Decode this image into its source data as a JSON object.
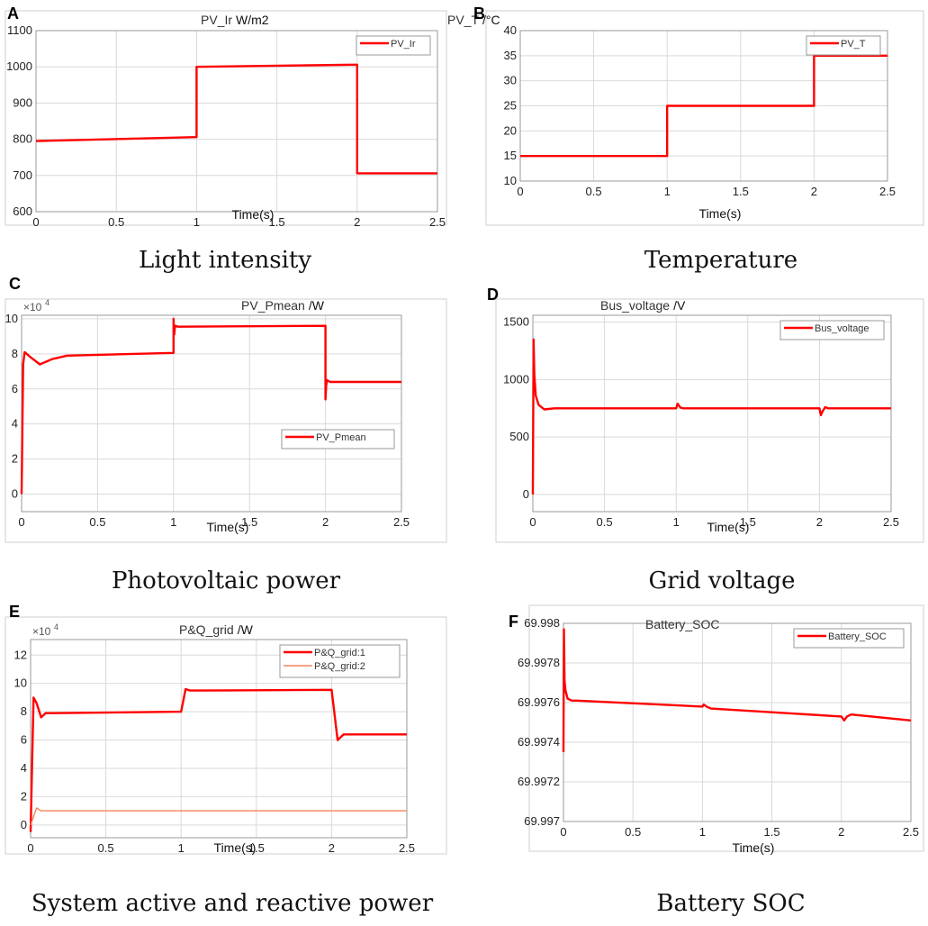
{
  "colors": {
    "primary_series": "#ff0000",
    "secondary_series": "#f4845f",
    "grid": "#d9d9d9",
    "axes_box": "#9a9a9a",
    "panel_border": "#cfcfcf"
  },
  "chart_data": [
    {
      "id": "A",
      "type": "line",
      "panel_letter": "A",
      "title": "PV_Ir",
      "title_unit": "W/m2",
      "caption": "Light intensity",
      "xlabel": "Time(s)",
      "ylabel": "",
      "xlim": [
        0,
        2.5
      ],
      "ylim": [
        600,
        1100
      ],
      "xticks": [
        0,
        0.5,
        1,
        1.5,
        2,
        2.5
      ],
      "xtick_labels": [
        "0",
        "0.5",
        "1",
        "1.5",
        "2",
        "2.5"
      ],
      "yticks": [
        600,
        700,
        800,
        900,
        1000,
        1100
      ],
      "ytick_labels": [
        "600",
        "700",
        "800",
        "900",
        "1000",
        "1100"
      ],
      "exponent": "",
      "grid": true,
      "legend_position": "top-right",
      "series": [
        {
          "name": "PV_Ir",
          "color": "#ff0000",
          "x": [
            0,
            1,
            1,
            2,
            2,
            2.5
          ],
          "y": [
            795,
            806,
            1000,
            1006,
            706,
            706
          ]
        }
      ]
    },
    {
      "id": "B",
      "type": "line",
      "panel_letter": "B",
      "title": "PV_T",
      "title_unit": "/°C",
      "caption": "Temperature",
      "xlabel": "Time(s)",
      "ylabel": "",
      "xlim": [
        0,
        2.5
      ],
      "ylim": [
        10,
        40
      ],
      "xticks": [
        0,
        0.5,
        1,
        1.5,
        2,
        2.5
      ],
      "xtick_labels": [
        "0",
        "0.5",
        "1",
        "1.5",
        "2",
        "2.5"
      ],
      "yticks": [
        10,
        15,
        20,
        25,
        30,
        35,
        40
      ],
      "ytick_labels": [
        "10",
        "15",
        "20",
        "25",
        "30",
        "35",
        "40"
      ],
      "exponent": "",
      "grid": true,
      "legend_position": "top-right",
      "series": [
        {
          "name": "PV_T",
          "color": "#ff0000",
          "x": [
            0,
            1,
            1,
            2,
            2,
            2.5
          ],
          "y": [
            15,
            15,
            25,
            25,
            35,
            35
          ]
        }
      ]
    },
    {
      "id": "C",
      "type": "line",
      "panel_letter": "C",
      "title": "PV_Pmean",
      "title_unit": "/W",
      "caption": "Photovoltaic power",
      "xlabel": "Time(s)",
      "ylabel": "",
      "xlim": [
        0,
        2.5
      ],
      "ylim": [
        -1,
        10.2
      ],
      "xticks": [
        0,
        0.5,
        1,
        1.5,
        2,
        2.5
      ],
      "xtick_labels": [
        "0",
        "0.5",
        "1",
        "1.5",
        "2",
        "2.5"
      ],
      "yticks": [
        0,
        2,
        4,
        6,
        8,
        10
      ],
      "ytick_labels": [
        "0",
        "2",
        "4",
        "6",
        "8",
        "10"
      ],
      "exponent": "4",
      "grid": true,
      "legend_position": "bottom-right",
      "series": [
        {
          "name": "PV_Pmean",
          "color": "#ff0000",
          "x": [
            0,
            0.01,
            0.02,
            0.06,
            0.12,
            0.2,
            0.3,
            1.0,
            1.0,
            1.005,
            1.01,
            1.03,
            2.0,
            2.0,
            2.005,
            2.01,
            2.03,
            2.5
          ],
          "y": [
            0,
            7.4,
            8.1,
            7.8,
            7.4,
            7.7,
            7.9,
            8.05,
            10.0,
            9.1,
            9.6,
            9.55,
            9.6,
            5.4,
            6.2,
            6.5,
            6.4,
            6.4
          ]
        }
      ]
    },
    {
      "id": "D",
      "type": "line",
      "panel_letter": "D",
      "title": "Bus_voltage",
      "title_unit": "/V",
      "caption": "Grid voltage",
      "xlabel": "Time(s)",
      "ylabel": "",
      "xlim": [
        0,
        2.5
      ],
      "ylim": [
        -150,
        1560
      ],
      "xticks": [
        0,
        0.5,
        1,
        1.5,
        2,
        2.5
      ],
      "xtick_labels": [
        "0",
        "0.5",
        "1",
        "1.5",
        "2",
        "2.5"
      ],
      "yticks": [
        0,
        500,
        1000,
        1500
      ],
      "ytick_labels": [
        "0",
        "500",
        "1000",
        "1500"
      ],
      "exponent": "",
      "grid": true,
      "legend_position": "top-right",
      "series": [
        {
          "name": "Bus_voltage",
          "color": "#ff0000",
          "x": [
            0,
            0.005,
            0.01,
            0.02,
            0.04,
            0.08,
            0.15,
            1.0,
            1.01,
            1.03,
            1.05,
            2.0,
            2.01,
            2.02,
            2.04,
            2.06,
            2.5
          ],
          "y": [
            0,
            1350,
            1050,
            860,
            780,
            740,
            750,
            750,
            790,
            755,
            750,
            750,
            690,
            720,
            760,
            750,
            750
          ]
        }
      ]
    },
    {
      "id": "E",
      "type": "line",
      "panel_letter": "E",
      "title": "P&Q_grid",
      "title_unit": "/W",
      "caption": "System active and reactive power",
      "xlabel": "Time(s)",
      "ylabel": "",
      "xlim": [
        0,
        2.5
      ],
      "ylim": [
        -0.9,
        13.1
      ],
      "xticks": [
        0,
        0.5,
        1,
        1.5,
        2,
        2.5
      ],
      "xtick_labels": [
        "0",
        "0.5",
        "1",
        "1.5",
        "2",
        "2.5"
      ],
      "yticks": [
        0,
        2,
        4,
        6,
        8,
        10,
        12
      ],
      "ytick_labels": [
        "0",
        "2",
        "4",
        "6",
        "8",
        "10",
        "12"
      ],
      "exponent": "4",
      "grid": true,
      "legend_position": "top-right",
      "series": [
        {
          "name": "P&Q_grid:1",
          "color": "#ff0000",
          "x": [
            0,
            0.02,
            0.04,
            0.07,
            0.1,
            0.15,
            1.0,
            1.03,
            1.06,
            1.1,
            2.0,
            2.04,
            2.08,
            2.12,
            2.5
          ],
          "y": [
            -0.5,
            9.0,
            8.6,
            7.6,
            7.9,
            7.9,
            8.0,
            9.6,
            9.5,
            9.5,
            9.55,
            6.0,
            6.4,
            6.4,
            6.4
          ]
        },
        {
          "name": "P&Q_grid:2",
          "color": "#f4845f",
          "x": [
            0,
            0.02,
            0.04,
            0.07,
            2.5
          ],
          "y": [
            0,
            0.6,
            1.2,
            1.0,
            1.0
          ]
        }
      ]
    },
    {
      "id": "F",
      "type": "line",
      "panel_letter": "F",
      "title": "Battery_SOC",
      "title_unit": "",
      "caption": "Battery SOC",
      "xlabel": "Time(s)",
      "ylabel": "",
      "xlim": [
        0,
        2.5
      ],
      "ylim": [
        69.997,
        69.998
      ],
      "xticks": [
        0,
        0.5,
        1,
        1.5,
        2,
        2.5
      ],
      "xtick_labels": [
        "0",
        "0.5",
        "1",
        "1.5",
        "2",
        "2.5"
      ],
      "yticks": [
        69.997,
        69.9972,
        69.9974,
        69.9976,
        69.9978,
        69.998
      ],
      "ytick_labels": [
        "69.997",
        "69.9972",
        "69.9974",
        "69.9976",
        "69.9978",
        "69.998"
      ],
      "exponent": "",
      "grid": true,
      "legend_position": "top-right",
      "series": [
        {
          "name": "Battery_SOC",
          "color": "#ff0000",
          "x": [
            0,
            0.003,
            0.008,
            0.015,
            0.03,
            0.06,
            0.1,
            1.0,
            1.01,
            1.03,
            1.06,
            2.0,
            2.02,
            2.04,
            2.07,
            2.5
          ],
          "y": [
            69.99735,
            69.99797,
            69.99771,
            69.99766,
            69.99762,
            69.99761,
            69.99761,
            69.99758,
            69.99759,
            69.99758,
            69.99757,
            69.99753,
            69.99751,
            69.99753,
            69.99754,
            69.99751
          ]
        }
      ]
    }
  ]
}
